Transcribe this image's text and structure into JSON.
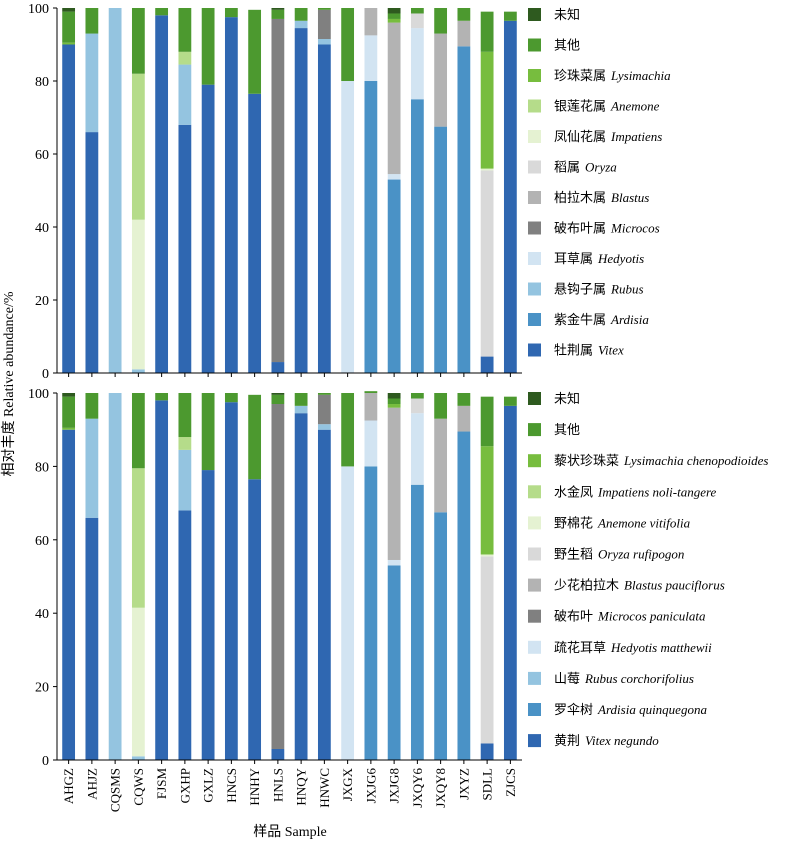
{
  "colors": {
    "Vitex": "#2f67b1",
    "Ardisia": "#4a92c6",
    "Rubus": "#94c4e0",
    "Hedyotis": "#d2e4f2",
    "Microcos": "#808080",
    "Blastus": "#b3b3b3",
    "Oryza": "#d9d9d9",
    "Impatiens": "#e5f2d2",
    "Anemone": "#b5dc8a",
    "Lysimachia": "#77bd3e",
    "other": "#4c992f",
    "unknown": "#2e5a1f"
  },
  "chart_data": [
    {
      "type": "bar",
      "stacked": true,
      "title": "",
      "ylabel": "相对丰度 Relative abundance/%",
      "xlabel": "样品 Sample",
      "ylim": [
        0,
        100
      ],
      "yticks": [
        "0",
        "20",
        "40",
        "60",
        "80",
        "100"
      ],
      "categories": [
        "AHGZ",
        "AHJZ",
        "CQSMS",
        "CQWS",
        "FJSM",
        "GXHP",
        "GXLZ",
        "HNCS",
        "HNHY",
        "HNLS",
        "HNQY",
        "HNWC",
        "JXGX",
        "JXJG6",
        "JXJG8",
        "JXQY6",
        "JXQY8",
        "JXYZ",
        "SDLL",
        "ZJCS"
      ],
      "legend_position": "right",
      "series": [
        {
          "name_cn": "牡荆属",
          "name_latin": "Vitex",
          "color_key": "Vitex",
          "values": [
            90,
            66,
            0,
            0,
            98,
            68,
            79,
            97.5,
            76.5,
            3,
            94.5,
            90,
            0,
            0,
            0,
            0,
            0,
            0,
            4.5,
            96.5
          ]
        },
        {
          "name_cn": "紫金牛属",
          "name_latin": "Ardisia",
          "color_key": "Ardisia",
          "values": [
            0,
            0,
            0,
            0,
            0,
            0,
            0,
            0,
            0,
            0,
            0,
            0,
            0,
            80,
            53,
            75,
            67.5,
            89.5,
            0,
            0
          ]
        },
        {
          "name_cn": "悬钩子属",
          "name_latin": "Rubus",
          "color_key": "Rubus",
          "values": [
            0,
            27,
            100,
            1,
            0,
            16.5,
            0,
            0,
            0,
            0,
            2,
            1.5,
            0,
            0,
            0,
            0,
            0,
            0,
            0,
            0
          ]
        },
        {
          "name_cn": "耳草属",
          "name_latin": "Hedyotis",
          "color_key": "Hedyotis",
          "values": [
            0,
            0,
            0,
            0,
            0,
            0,
            0,
            0,
            0,
            0,
            0,
            0,
            80,
            12.5,
            1.5,
            19.5,
            0,
            0,
            0,
            0
          ]
        },
        {
          "name_cn": "破布叶属",
          "name_latin": "Microcos",
          "color_key": "Microcos",
          "values": [
            0,
            0,
            0,
            0,
            0,
            0,
            0,
            0,
            0,
            94,
            0,
            8,
            0,
            0,
            0,
            0,
            0,
            0,
            0,
            0
          ]
        },
        {
          "name_cn": "柏拉木属",
          "name_latin": "Blastus",
          "color_key": "Blastus",
          "values": [
            0,
            0,
            0,
            0,
            0,
            0,
            0,
            0,
            0,
            0,
            0,
            0,
            0,
            7.5,
            41.5,
            0,
            25.5,
            7,
            0,
            0
          ]
        },
        {
          "name_cn": "稻属",
          "name_latin": "Oryza",
          "color_key": "Oryza",
          "values": [
            0,
            0,
            0,
            0,
            0,
            0,
            0,
            0,
            0,
            0,
            0,
            0,
            0,
            0,
            0,
            4,
            0,
            0,
            51,
            0
          ]
        },
        {
          "name_cn": "凤仙花属",
          "name_latin": "Impatiens",
          "color_key": "Impatiens",
          "values": [
            0,
            0,
            0,
            41,
            0,
            0,
            0,
            0,
            0,
            0,
            0,
            0,
            0,
            0,
            0,
            0,
            0,
            0,
            0.5,
            0
          ]
        },
        {
          "name_cn": "银莲花属",
          "name_latin": "Anemone",
          "color_key": "Anemone",
          "values": [
            0,
            0,
            0,
            40,
            0,
            3.5,
            0,
            0,
            0,
            0,
            0,
            0,
            0,
            0,
            0,
            0,
            0,
            0,
            0,
            0
          ]
        },
        {
          "name_cn": "珍珠菜属",
          "name_latin": "Lysimachia",
          "color_key": "Lysimachia",
          "values": [
            0.5,
            0,
            0,
            0,
            0,
            0,
            0,
            0,
            0,
            0,
            0,
            0,
            0,
            0,
            1,
            0,
            0,
            0,
            32,
            0
          ]
        },
        {
          "name_cn": "其他",
          "name_latin": "",
          "color_key": "other",
          "values": [
            8.5,
            7,
            0,
            18,
            2,
            12,
            21,
            2.5,
            23,
            2.5,
            3.5,
            0.5,
            20,
            0,
            1.5,
            1.5,
            7,
            3.5,
            11,
            2.5
          ]
        },
        {
          "name_cn": "未知",
          "name_latin": "",
          "color_key": "unknown",
          "values": [
            1,
            0,
            0,
            0,
            0,
            0,
            0,
            0,
            0,
            0.5,
            0,
            0,
            0,
            0,
            1.5,
            0,
            0,
            0,
            0,
            0
          ]
        }
      ]
    },
    {
      "type": "bar",
      "stacked": true,
      "title": "",
      "ylabel": "相对丰度 Relative abundance/%",
      "xlabel": "样品 Sample",
      "ylim": [
        0,
        100
      ],
      "yticks": [
        "0",
        "20",
        "40",
        "60",
        "80",
        "100"
      ],
      "categories": [
        "AHGZ",
        "AHJZ",
        "CQSMS",
        "CQWS",
        "FJSM",
        "GXHP",
        "GXLZ",
        "HNCS",
        "HNHY",
        "HNLS",
        "HNQY",
        "HNWC",
        "JXGX",
        "JXJG6",
        "JXJG8",
        "JXQY6",
        "JXQY8",
        "JXYZ",
        "SDLL",
        "ZJCS"
      ],
      "legend_position": "right",
      "series": [
        {
          "name_cn": "黄荆",
          "name_latin": "Vitex negundo",
          "color_key": "Vitex",
          "values": [
            90,
            66,
            0,
            0,
            98,
            68,
            79,
            97.5,
            76.5,
            3,
            94.5,
            90,
            0,
            0,
            0,
            0,
            0,
            0,
            4.5,
            96.5
          ]
        },
        {
          "name_cn": "罗伞树",
          "name_latin": "Ardisia quinquegona",
          "color_key": "Ardisia",
          "values": [
            0,
            0,
            0,
            0,
            0,
            0,
            0,
            0,
            0,
            0,
            0,
            0,
            0,
            80,
            53,
            75,
            67.5,
            89.5,
            0,
            0
          ]
        },
        {
          "name_cn": "山莓",
          "name_latin": "Rubus corchorifolius",
          "color_key": "Rubus",
          "values": [
            0,
            27,
            100,
            1,
            0,
            16.5,
            0,
            0,
            0,
            0,
            2,
            1.5,
            0,
            0,
            0,
            0,
            0,
            0,
            0,
            0
          ]
        },
        {
          "name_cn": "疏花耳草",
          "name_latin": "Hedyotis matthewii",
          "color_key": "Hedyotis",
          "values": [
            0,
            0,
            0,
            0,
            0,
            0,
            0,
            0,
            0,
            0,
            0,
            0,
            80,
            12.5,
            1.5,
            19.5,
            0,
            0,
            0,
            0
          ]
        },
        {
          "name_cn": "破布叶",
          "name_latin": "Microcos paniculata",
          "color_key": "Microcos",
          "values": [
            0,
            0,
            0,
            0,
            0,
            0,
            0,
            0,
            0,
            94,
            0,
            8,
            0,
            0,
            0,
            0,
            0,
            0,
            0,
            0
          ]
        },
        {
          "name_cn": "少花柏拉木",
          "name_latin": "Blastus pauciflorus",
          "color_key": "Blastus",
          "values": [
            0,
            0,
            0,
            0,
            0,
            0,
            0,
            0,
            0,
            0,
            0,
            0,
            0,
            7.5,
            41.5,
            0,
            25.5,
            7,
            0,
            0
          ]
        },
        {
          "name_cn": "野生稻",
          "name_latin": "Oryza rufipogon",
          "color_key": "Oryza",
          "values": [
            0,
            0,
            0,
            0,
            0,
            0,
            0,
            0,
            0,
            0,
            0,
            0,
            0,
            0,
            0,
            4,
            0,
            0,
            51,
            0
          ]
        },
        {
          "name_cn": "野棉花",
          "name_latin": "Anemone vitifolia",
          "color_key": "Impatiens",
          "values": [
            0,
            0,
            0,
            40.5,
            0,
            0,
            0,
            0,
            0,
            0,
            0,
            0,
            0,
            0,
            0,
            0,
            0,
            0,
            0.5,
            0
          ]
        },
        {
          "name_cn": "水金凤",
          "name_latin": "Impatiens noli-tangere",
          "color_key": "Anemone",
          "values": [
            0,
            0,
            0,
            38,
            0,
            3.5,
            0,
            0,
            0,
            0,
            0,
            0,
            0,
            0,
            0,
            0,
            0,
            0,
            0,
            0
          ]
        },
        {
          "name_cn": "藜状珍珠菜",
          "name_latin": "Lysimachia chenopodioides",
          "color_key": "Lysimachia",
          "values": [
            0.5,
            0,
            0,
            0,
            0,
            0,
            0,
            0,
            0,
            0,
            0,
            0,
            0,
            0,
            1,
            0,
            0,
            0,
            29.5,
            0
          ]
        },
        {
          "name_cn": "其他",
          "name_latin": "",
          "color_key": "other",
          "values": [
            8.5,
            7,
            0,
            20.5,
            2,
            12,
            21,
            2.5,
            23,
            2.5,
            3.5,
            0.5,
            20,
            0.5,
            1.5,
            1.5,
            7,
            3.5,
            13.5,
            2.5
          ]
        },
        {
          "name_cn": "未知",
          "name_latin": "",
          "color_key": "unknown",
          "values": [
            1,
            0,
            0,
            0,
            0,
            0,
            0,
            0,
            0,
            0.5,
            0,
            0,
            0,
            0,
            1.5,
            0,
            0,
            0,
            0,
            0
          ]
        }
      ]
    }
  ]
}
